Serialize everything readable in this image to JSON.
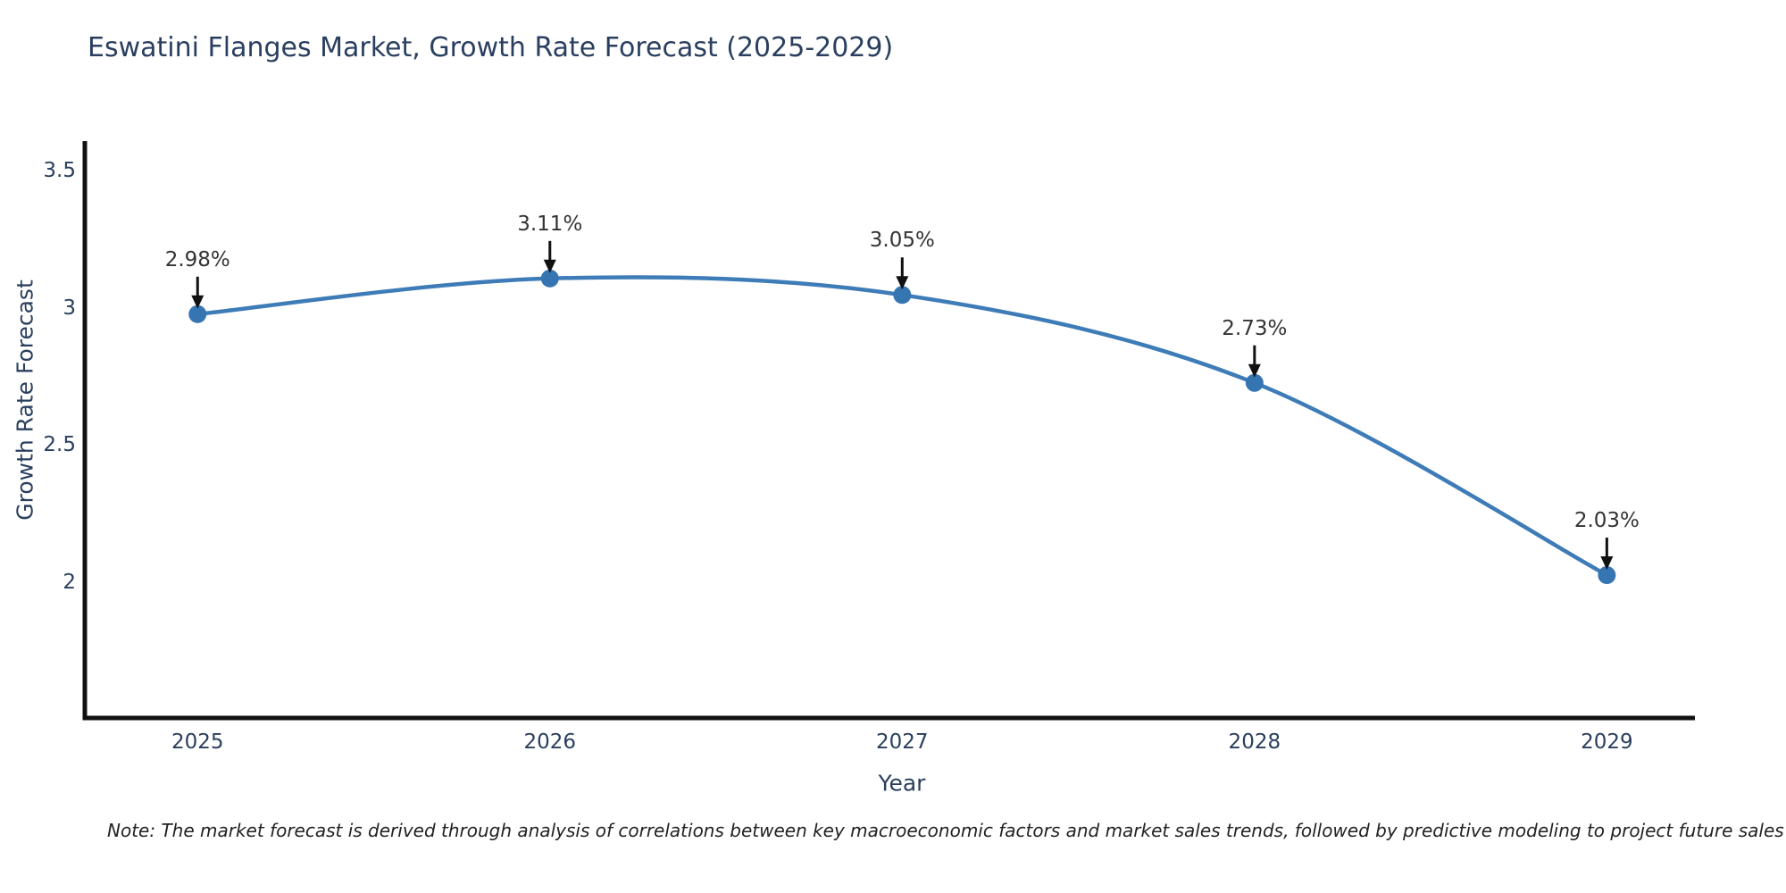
{
  "title": "Eswatini Flanges Market, Growth Rate Forecast (2025-2029)",
  "note": "Note: The market forecast is derived through analysis of correlations between key macroeconomic factors and market sales trends, followed by predictive modeling to project future sales",
  "colors": {
    "line": "#3e7cb8",
    "marker": "#3575b2",
    "axis_text": "#2a3f5f",
    "annotation_text": "#333333",
    "arrow": "#111111",
    "spine": "#111111",
    "background": "#ffffff"
  },
  "chart_data": {
    "type": "line",
    "line_shape": "spline",
    "title": "Eswatini Flanges Market, Growth Rate Forecast (2025-2029)",
    "xlabel": "Year",
    "ylabel": "Growth Rate Forecast",
    "x": [
      2025,
      2026,
      2027,
      2028,
      2029
    ],
    "y": [
      2.98,
      3.11,
      3.05,
      2.73,
      2.03
    ],
    "point_labels": [
      "2.98%",
      "3.11%",
      "3.05%",
      "2.73%",
      "2.03%"
    ],
    "x_tick_labels": [
      "2025",
      "2026",
      "2027",
      "2028",
      "2029"
    ],
    "y_ticks": [
      3.5,
      3.0,
      2.5,
      2.0
    ],
    "y_tick_labels": [
      "3.5",
      "3",
      "2.5",
      "2"
    ],
    "xlim": [
      2024.68,
      2029.25
    ],
    "ylim": [
      1.51,
      3.61
    ],
    "grid": false,
    "legend": false,
    "annotations_have_arrows": true
  }
}
